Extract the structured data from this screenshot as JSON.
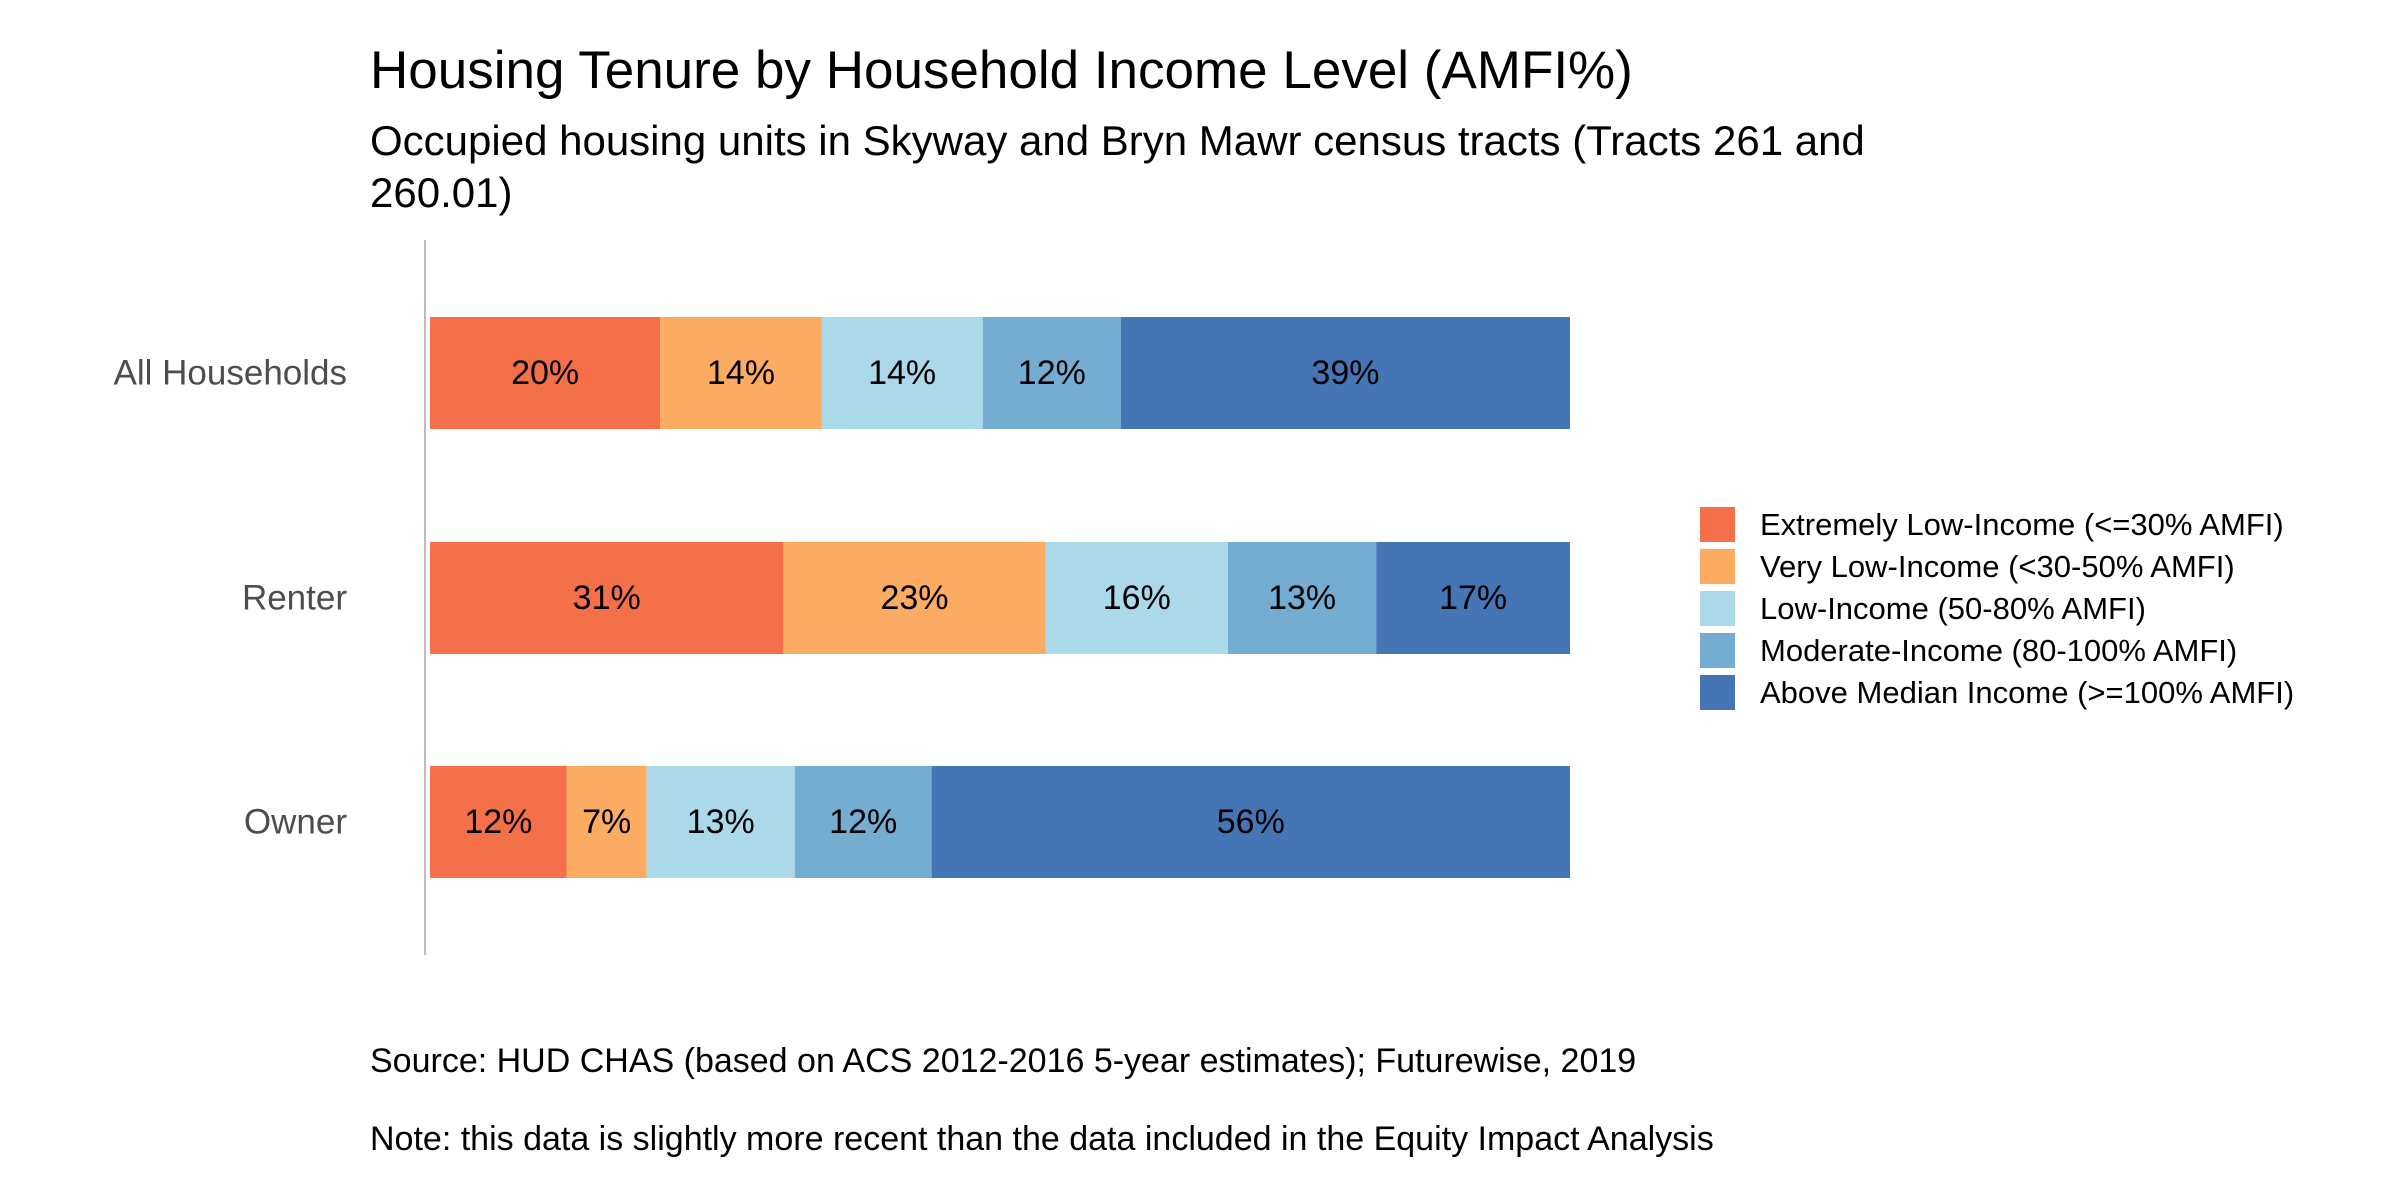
{
  "chart_data": {
    "type": "bar",
    "orientation": "horizontal",
    "stacked": "percent",
    "title": "Housing Tenure by Household Income Level (AMFI%)",
    "subtitle": "Occupied housing units in Skyway and Bryn Mawr census tracts (Tracts 261 and 260.01)",
    "categories": [
      "All Households",
      "Renter",
      "Owner"
    ],
    "series": [
      {
        "name": "Extremely Low-Income (<=30% AMFI)",
        "color": "#F47049",
        "values": [
          20,
          31,
          12
        ],
        "labels": [
          "20%",
          "31%",
          "12%"
        ]
      },
      {
        "name": "Very Low-Income (<30-50% AMFI)",
        "color": "#FCAB63",
        "values": [
          14,
          23,
          7
        ],
        "labels": [
          "14%",
          "23%",
          "7%"
        ]
      },
      {
        "name": "Low-Income (50-80% AMFI)",
        "color": "#ABD9E9",
        "values": [
          14,
          16,
          13
        ],
        "labels": [
          "14%",
          "16%",
          "13%"
        ]
      },
      {
        "name": "Moderate-Income (80-100% AMFI)",
        "color": "#74ADD1",
        "values": [
          12,
          13,
          12
        ],
        "labels": [
          "12%",
          "13%",
          "12%"
        ]
      },
      {
        "name": "Above Median Income (>=100% AMFI)",
        "color": "#4575B4",
        "values": [
          39,
          17,
          56
        ],
        "labels": [
          "39%",
          "17%",
          "56%"
        ]
      }
    ],
    "legend_position": "right",
    "grid": false,
    "source": "Source: HUD CHAS (based on ACS 2012-2016 5-year estimates); Futurewise, 2019",
    "note": "Note: this data is slightly more recent than the data included in the Equity Impact Analysis"
  }
}
